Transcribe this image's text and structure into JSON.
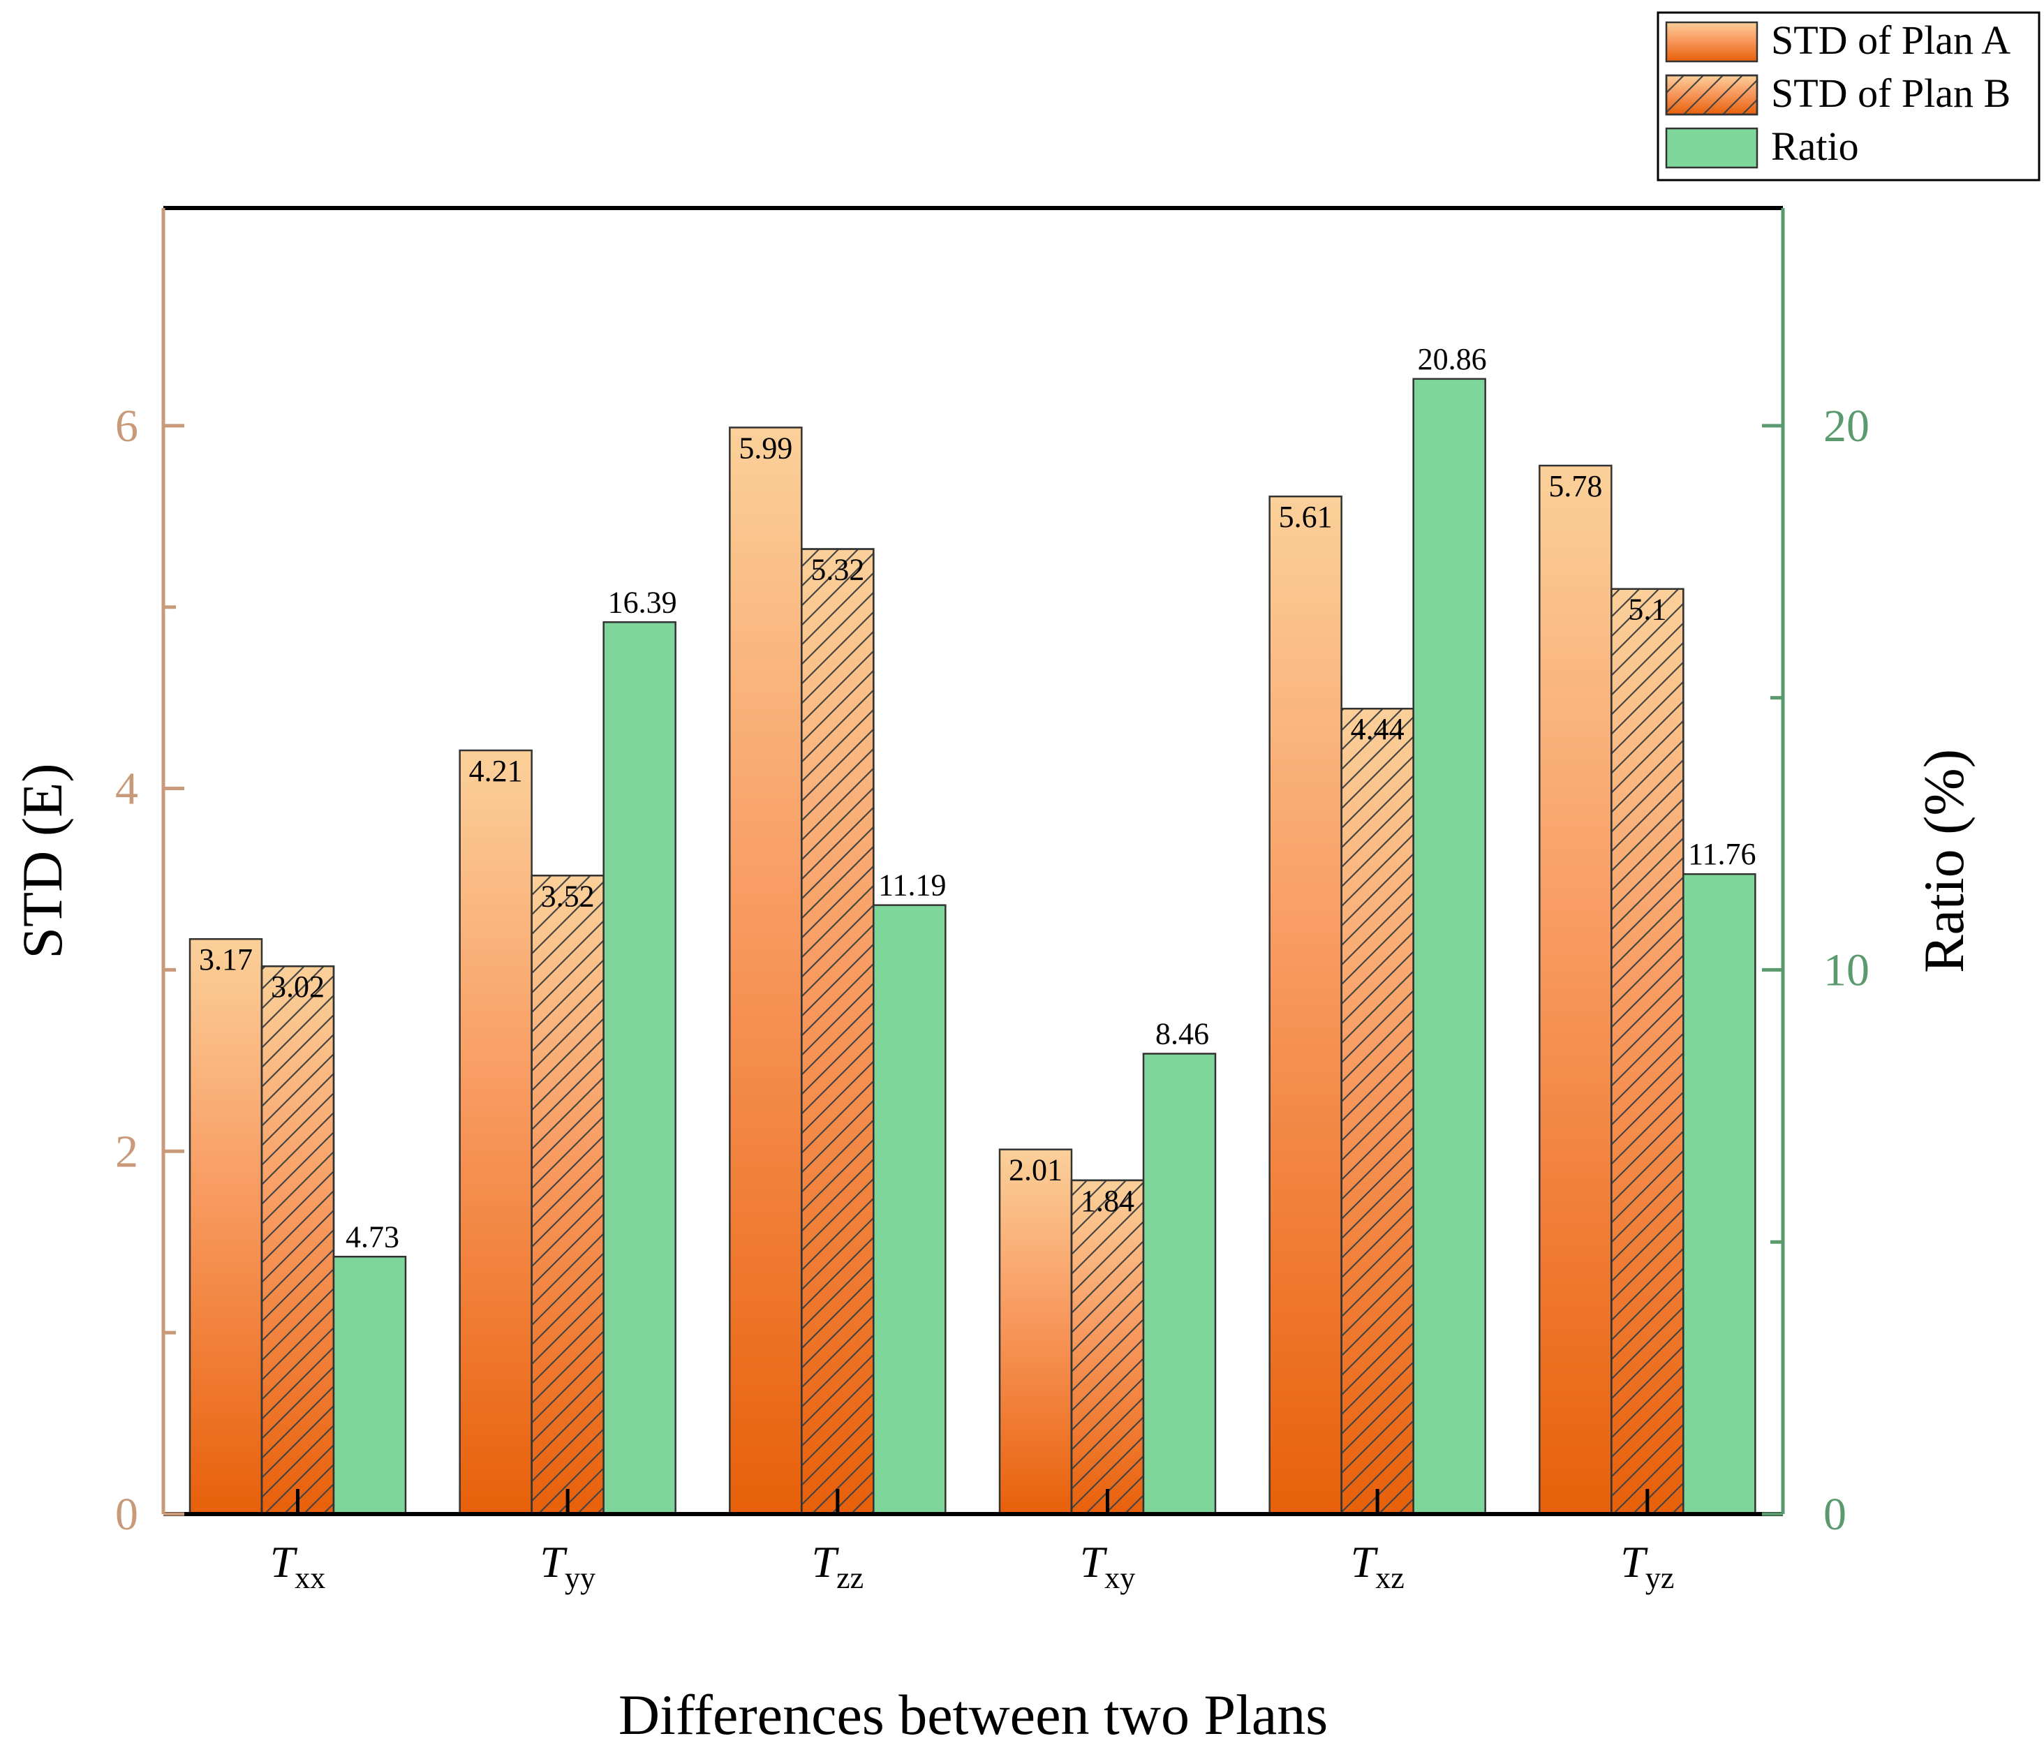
{
  "chart_data": {
    "type": "bar",
    "title": "",
    "categories": [
      {
        "base": "T",
        "sub": "xx"
      },
      {
        "base": "T",
        "sub": "yy"
      },
      {
        "base": "T",
        "sub": "zz"
      },
      {
        "base": "T",
        "sub": "xy"
      },
      {
        "base": "T",
        "sub": "xz"
      },
      {
        "base": "T",
        "sub": "yz"
      }
    ],
    "series": [
      {
        "name": "STD of Plan A",
        "axis": "left",
        "style": "gradient",
        "values": [
          3.17,
          4.21,
          5.99,
          2.01,
          5.61,
          5.78
        ],
        "labels": [
          "3.17",
          "4.21",
          "5.99",
          "2.01",
          "5.61",
          "5.78"
        ]
      },
      {
        "name": "STD of Plan B",
        "axis": "left",
        "style": "gradient-hatched",
        "values": [
          3.02,
          3.52,
          5.32,
          1.84,
          4.44,
          5.1
        ],
        "labels": [
          "3.02",
          "3.52",
          "5.32",
          "1.84",
          "4.44",
          "5.1"
        ]
      },
      {
        "name": "Ratio",
        "axis": "right",
        "style": "solid",
        "values": [
          4.73,
          16.39,
          11.19,
          8.46,
          20.86,
          11.76
        ],
        "labels": [
          "4.73",
          "16.39",
          "11.19",
          "8.46",
          "20.86",
          "11.76"
        ]
      }
    ],
    "xlabel": "Differences between two Plans",
    "ylabel": "STD (E)",
    "y2label": "Ratio (%)",
    "ylim": [
      0,
      7.2
    ],
    "y2lim": [
      0,
      24.0
    ],
    "yticks": [
      0,
      2,
      4,
      6
    ],
    "yticks_minor": [
      1,
      3,
      5
    ],
    "y2ticks": [
      0,
      10,
      20
    ],
    "y2ticks_minor": [
      5,
      15
    ],
    "legend": "top-right",
    "colors": {
      "left_axis": "#c89a7a",
      "right_axis": "#5a9a6e",
      "ratio_fill": "#7fd69a",
      "bar_top": "#fbd09a",
      "bar_mid": "#f89a60",
      "bar_bottom": "#e8600a",
      "bar_stroke": "#333333",
      "hatch": "#444444",
      "frame": "#000000"
    }
  }
}
